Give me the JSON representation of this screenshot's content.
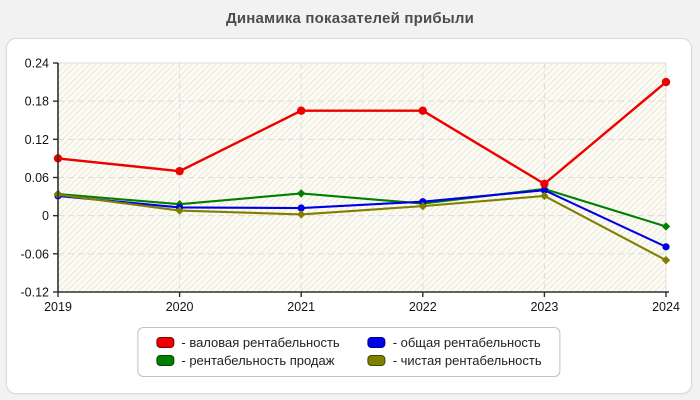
{
  "title": "Динамика показателей прибыли",
  "chart_data": {
    "type": "line",
    "title": "Динамика показателей прибыли",
    "xlabel": "",
    "ylabel": "",
    "x_labels": [
      "2019",
      "2020",
      "2021",
      "2022",
      "2023",
      "2024"
    ],
    "y_tick_labels": [
      "0.24",
      "0.18",
      "0.12",
      "0.06",
      "0",
      "-0.06",
      "-0.12"
    ],
    "ylim": [
      -0.12,
      0.24
    ],
    "y_step": 0.06,
    "grid": "dashed",
    "legend_position": "bottom-center",
    "colors": {
      "page_bg": "#f2f2f2",
      "panel_bg": "#ffffff",
      "plot_bg": "#fdfcf4",
      "hatch": "#ece7da",
      "gridline": "#dcdcdc",
      "axis": "#2e2e2e",
      "title_text": "#4d4d4d"
    },
    "series": [
      {
        "name": "валовая рентабельность",
        "legend_label": "- валовая рентабельность",
        "color": "#ee0000",
        "marker": "circle",
        "values": [
          0.09,
          0.07,
          0.165,
          0.165,
          0.05,
          0.21
        ]
      },
      {
        "name": "общая рентабельность",
        "legend_label": "- общая рентабельность",
        "color": "#0000e8",
        "marker": "circle",
        "values": [
          0.031,
          0.013,
          0.012,
          0.022,
          0.04,
          -0.049
        ]
      },
      {
        "name": "рентабельность продаж",
        "legend_label": "- рентабельность продаж",
        "color": "#008000",
        "marker": "diamond",
        "values": [
          0.034,
          0.018,
          0.035,
          0.019,
          0.042,
          -0.017
        ]
      },
      {
        "name": "чистая рентабельность",
        "legend_label": "- чистая рентабельность",
        "color": "#808000",
        "marker": "diamond",
        "values": [
          0.033,
          0.008,
          0.002,
          0.015,
          0.031,
          -0.07
        ]
      }
    ]
  }
}
